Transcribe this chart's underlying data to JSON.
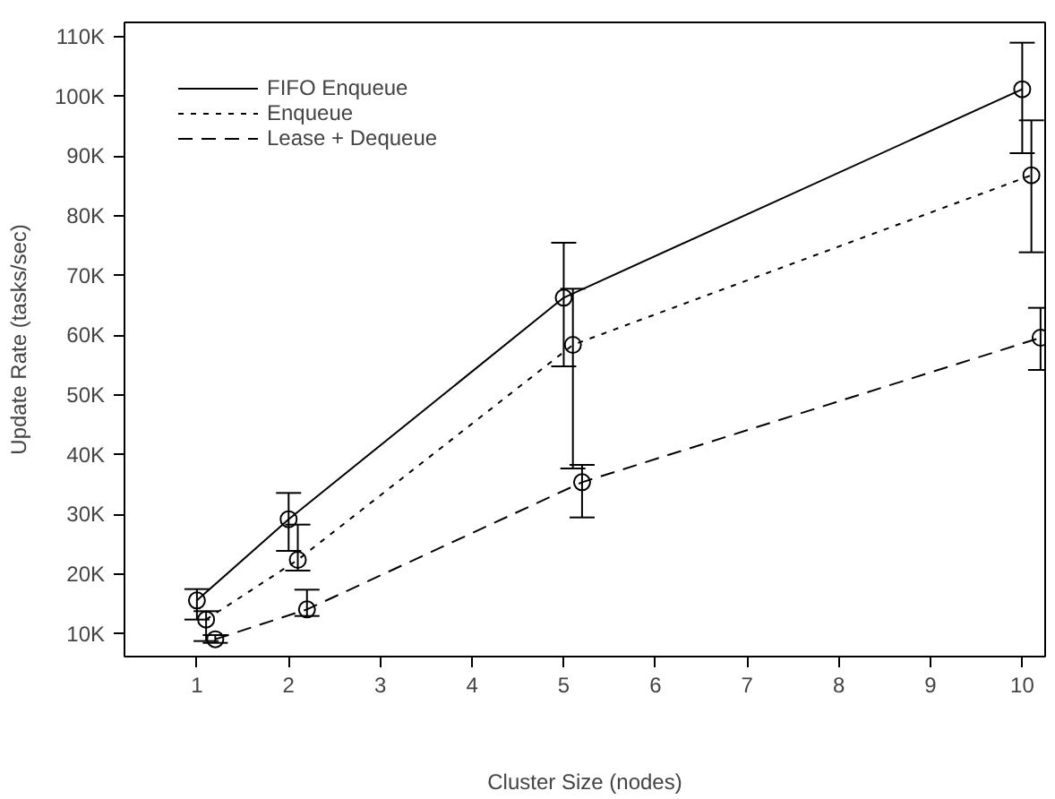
{
  "chart_data": {
    "type": "line",
    "xlabel": "Cluster Size (nodes)",
    "ylabel": "Update Rate (tasks/sec)",
    "xlim": [
      0.21,
      10.25
    ],
    "xticks": [
      1,
      2,
      3,
      4,
      5,
      6,
      7,
      8,
      9,
      10
    ],
    "ylim": [
      6200,
      112400
    ],
    "yticks": [
      {
        "value": 10000,
        "label": "10K"
      },
      {
        "value": 20000,
        "label": "20K"
      },
      {
        "value": 30000,
        "label": "30K"
      },
      {
        "value": 40000,
        "label": "40K"
      },
      {
        "value": 50000,
        "label": "50K"
      },
      {
        "value": 60000,
        "label": "60K"
      },
      {
        "value": 70000,
        "label": "70K"
      },
      {
        "value": 80000,
        "label": "80K"
      },
      {
        "value": 90000,
        "label": "90K"
      },
      {
        "value": 100000,
        "label": "100K"
      },
      {
        "value": 110000,
        "label": "110K"
      }
    ],
    "grid": false,
    "legend": "top left",
    "marker": "circle",
    "series": [
      {
        "name": "FIFO Enqueue",
        "color": "#000000",
        "line_style": "solid",
        "x": [
          1,
          2,
          5,
          10
        ],
        "values": [
          15600,
          29200,
          66300,
          101200
        ],
        "errors": [
          [
            12400,
            17500
          ],
          [
            23900,
            33600
          ],
          [
            54800,
            75500
          ],
          [
            90500,
            109000
          ]
        ]
      },
      {
        "name": "Enqueue",
        "color": "#000000",
        "line_style": "dotted",
        "x": [
          1.1,
          2.1,
          5.1,
          10.1
        ],
        "values": [
          12400,
          22400,
          58400,
          86800
        ],
        "errors": [
          [
            8800,
            13800
          ],
          [
            20600,
            28300
          ],
          [
            37700,
            67800
          ],
          [
            73900,
            96000
          ]
        ]
      },
      {
        "name": "Lease + Dequeue",
        "color": "#000000",
        "line_style": "dashed",
        "x": [
          1.2,
          2.2,
          5.2,
          10.2
        ],
        "values": [
          9100,
          14100,
          35400,
          59600
        ],
        "errors": [
          [
            8500,
            9800
          ],
          [
            13000,
            17400
          ],
          [
            29500,
            38300
          ],
          [
            54200,
            64600
          ]
        ]
      }
    ]
  }
}
